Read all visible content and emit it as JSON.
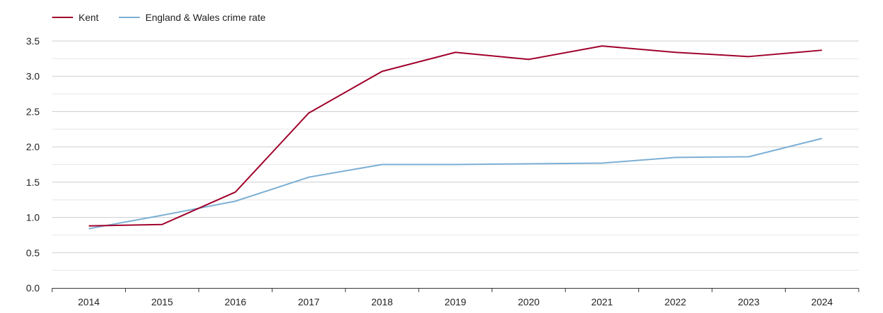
{
  "chart_data": {
    "type": "line",
    "title": "",
    "xlabel": "",
    "ylabel": "",
    "legend_position": "top-left",
    "grid": true,
    "categories": [
      "2014",
      "2015",
      "2016",
      "2017",
      "2018",
      "2019",
      "2020",
      "2021",
      "2022",
      "2023",
      "2024"
    ],
    "ylim": [
      0,
      3.5
    ],
    "yticks": [
      "0.0",
      "0.5",
      "1.0",
      "1.5",
      "2.0",
      "2.5",
      "3.0",
      "3.5"
    ],
    "series": [
      {
        "name": "Kent",
        "color": "#a0002a",
        "values": [
          0.88,
          0.9,
          1.36,
          2.48,
          3.07,
          3.34,
          3.24,
          3.43,
          3.34,
          3.28,
          3.37
        ]
      },
      {
        "name": "England & Wales crime rate",
        "color": "#7bafd4",
        "values": [
          0.84,
          1.03,
          1.23,
          1.57,
          1.75,
          1.75,
          1.76,
          1.77,
          1.85,
          1.86,
          2.12
        ]
      }
    ]
  }
}
